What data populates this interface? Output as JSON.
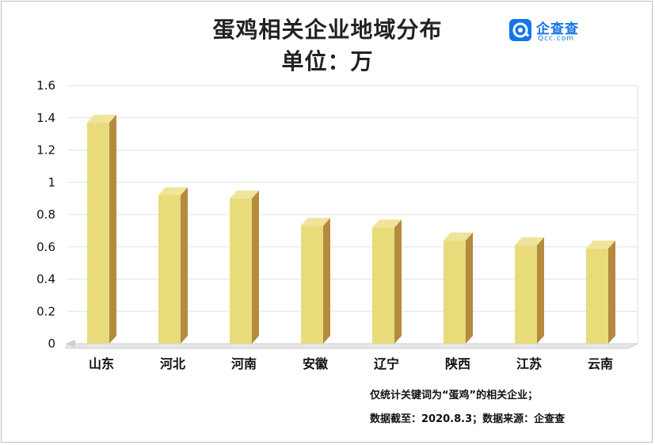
{
  "header": {
    "title_line1": "蛋鸡相关企业地域分布",
    "title_line2": "单位：万"
  },
  "logo": {
    "name": "企查查",
    "sub": "Qcc.com",
    "icon": "qcc-logo-icon",
    "color": "#1475e8"
  },
  "footer": {
    "note1": "仅统计关键词为“蛋鸡”的相关企业；",
    "note2": "数据截至：2020.8.3；数据来源：企查查"
  },
  "colors": {
    "bar_front": "#e8dc7a",
    "bar_top": "#efe49a",
    "bar_side": "#b58a3f",
    "grid": "#e2e2e2",
    "axis": "#dcdcdc"
  },
  "chart_data": {
    "type": "bar",
    "style": "3d-column",
    "categories": [
      "山东",
      "河北",
      "河南",
      "安徽",
      "辽宁",
      "陕西",
      "江苏",
      "云南"
    ],
    "values": [
      1.37,
      0.92,
      0.9,
      0.73,
      0.72,
      0.64,
      0.61,
      0.59
    ],
    "ylim": [
      0,
      1.6
    ],
    "yticks": [
      "0",
      "0.2",
      "0.4",
      "0.6",
      "0.8",
      "1",
      "1.2",
      "1.4",
      "1.6"
    ],
    "ytick_values": [
      0,
      0.2,
      0.4,
      0.6,
      0.8,
      1.0,
      1.2,
      1.4,
      1.6
    ],
    "grid": true,
    "legend": "none",
    "title": "蛋鸡相关企业地域分布",
    "ylabel": "单位：万",
    "xlabel": ""
  }
}
